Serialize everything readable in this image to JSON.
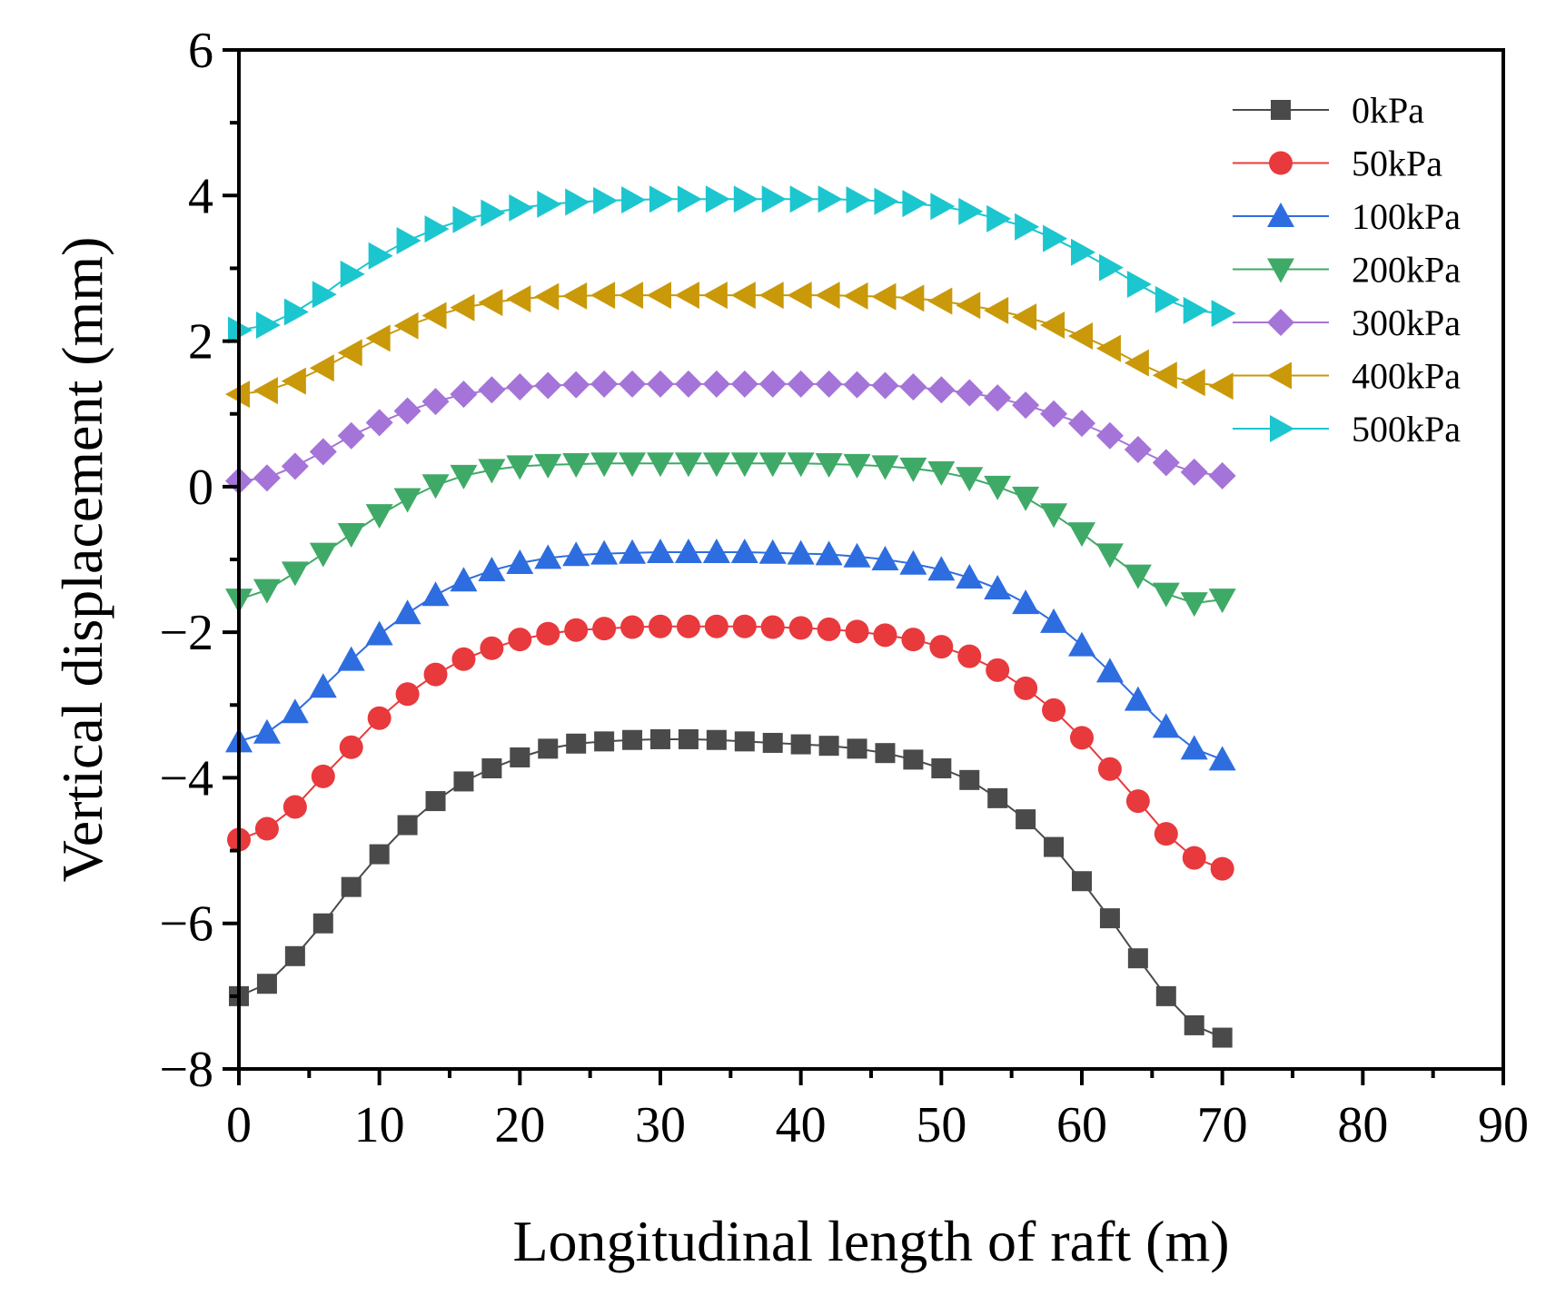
{
  "chart_data": {
    "type": "line",
    "title": "",
    "xlabel": "Longitudinal length of raft (m)",
    "ylabel": "Vertical displacement (mm)",
    "xlim": [
      0,
      90
    ],
    "ylim": [
      -8,
      6
    ],
    "x_ticks": [
      0,
      10,
      20,
      30,
      40,
      50,
      60,
      70,
      80,
      90
    ],
    "y_ticks": [
      -8,
      -6,
      -4,
      -2,
      0,
      2,
      4,
      6
    ],
    "x_tick_labels": [
      "0",
      "10",
      "20",
      "30",
      "40",
      "50",
      "60",
      "70",
      "80",
      "90"
    ],
    "y_tick_labels": [
      "−8",
      "−6",
      "−4",
      "−2",
      "0",
      "2",
      "4",
      "6"
    ],
    "grid": false,
    "legend_position": "top-right",
    "x": [
      0,
      2,
      4,
      6,
      8,
      10,
      12,
      14,
      16,
      18,
      20,
      22,
      24,
      26,
      28,
      30,
      32,
      34,
      36,
      38,
      40,
      42,
      44,
      46,
      48,
      50,
      52,
      54,
      56,
      58,
      60,
      62,
      64,
      66,
      68,
      70
    ],
    "series": [
      {
        "name": "0kPa",
        "color": "#4a4a4a",
        "marker": "square",
        "values": [
          -7.0,
          -6.83,
          -6.45,
          -6.0,
          -5.5,
          -5.05,
          -4.65,
          -4.32,
          -4.05,
          -3.87,
          -3.72,
          -3.6,
          -3.53,
          -3.5,
          -3.48,
          -3.47,
          -3.47,
          -3.48,
          -3.5,
          -3.52,
          -3.54,
          -3.56,
          -3.6,
          -3.66,
          -3.75,
          -3.87,
          -4.03,
          -4.28,
          -4.57,
          -4.95,
          -5.42,
          -5.93,
          -6.48,
          -7.0,
          -7.4,
          -7.57
        ]
      },
      {
        "name": "50kPa",
        "color": "#e8393c",
        "marker": "circle",
        "values": [
          -4.85,
          -4.7,
          -4.4,
          -3.98,
          -3.58,
          -3.18,
          -2.85,
          -2.58,
          -2.37,
          -2.22,
          -2.1,
          -2.02,
          -1.97,
          -1.95,
          -1.93,
          -1.92,
          -1.92,
          -1.92,
          -1.92,
          -1.93,
          -1.94,
          -1.96,
          -1.99,
          -2.04,
          -2.1,
          -2.2,
          -2.33,
          -2.52,
          -2.77,
          -3.07,
          -3.45,
          -3.88,
          -4.32,
          -4.77,
          -5.1,
          -5.25
        ]
      },
      {
        "name": "100kPa",
        "color": "#2e6de0",
        "marker": "triangle-up",
        "values": [
          -3.5,
          -3.38,
          -3.1,
          -2.75,
          -2.38,
          -2.03,
          -1.74,
          -1.49,
          -1.29,
          -1.15,
          -1.05,
          -0.98,
          -0.94,
          -0.92,
          -0.91,
          -0.9,
          -0.9,
          -0.9,
          -0.9,
          -0.91,
          -0.92,
          -0.93,
          -0.96,
          -1.0,
          -1.06,
          -1.14,
          -1.25,
          -1.4,
          -1.6,
          -1.86,
          -2.18,
          -2.54,
          -2.93,
          -3.3,
          -3.6,
          -3.75
        ]
      },
      {
        "name": "200kPa",
        "color": "#3faa67",
        "marker": "triangle-down",
        "values": [
          -1.55,
          -1.42,
          -1.18,
          -0.92,
          -0.65,
          -0.39,
          -0.17,
          0.02,
          0.15,
          0.23,
          0.28,
          0.3,
          0.31,
          0.32,
          0.32,
          0.32,
          0.32,
          0.32,
          0.32,
          0.32,
          0.32,
          0.31,
          0.3,
          0.28,
          0.25,
          0.2,
          0.12,
          0.0,
          -0.15,
          -0.38,
          -0.64,
          -0.93,
          -1.22,
          -1.47,
          -1.6,
          -1.55
        ]
      },
      {
        "name": "300kPa",
        "color": "#a574d8",
        "marker": "diamond",
        "values": [
          0.08,
          0.12,
          0.28,
          0.48,
          0.7,
          0.88,
          1.04,
          1.17,
          1.27,
          1.33,
          1.37,
          1.39,
          1.4,
          1.41,
          1.41,
          1.41,
          1.41,
          1.41,
          1.41,
          1.41,
          1.41,
          1.41,
          1.4,
          1.39,
          1.37,
          1.33,
          1.29,
          1.22,
          1.12,
          1.0,
          0.87,
          0.7,
          0.51,
          0.33,
          0.2,
          0.15
        ]
      },
      {
        "name": "400kPa",
        "color": "#c9990a",
        "marker": "triangle-left",
        "values": [
          1.27,
          1.32,
          1.45,
          1.63,
          1.84,
          2.04,
          2.21,
          2.35,
          2.46,
          2.53,
          2.58,
          2.61,
          2.62,
          2.63,
          2.63,
          2.63,
          2.63,
          2.63,
          2.63,
          2.63,
          2.63,
          2.63,
          2.62,
          2.61,
          2.59,
          2.55,
          2.49,
          2.42,
          2.33,
          2.22,
          2.07,
          1.9,
          1.7,
          1.53,
          1.43,
          1.38
        ]
      },
      {
        "name": "500kPa",
        "color": "#1cc6cf",
        "marker": "triangle-right",
        "values": [
          2.15,
          2.22,
          2.4,
          2.64,
          2.92,
          3.17,
          3.38,
          3.54,
          3.67,
          3.76,
          3.83,
          3.88,
          3.91,
          3.93,
          3.94,
          3.95,
          3.95,
          3.95,
          3.95,
          3.95,
          3.95,
          3.95,
          3.94,
          3.92,
          3.89,
          3.85,
          3.78,
          3.68,
          3.57,
          3.41,
          3.22,
          3.01,
          2.78,
          2.57,
          2.42,
          2.38
        ]
      }
    ]
  }
}
